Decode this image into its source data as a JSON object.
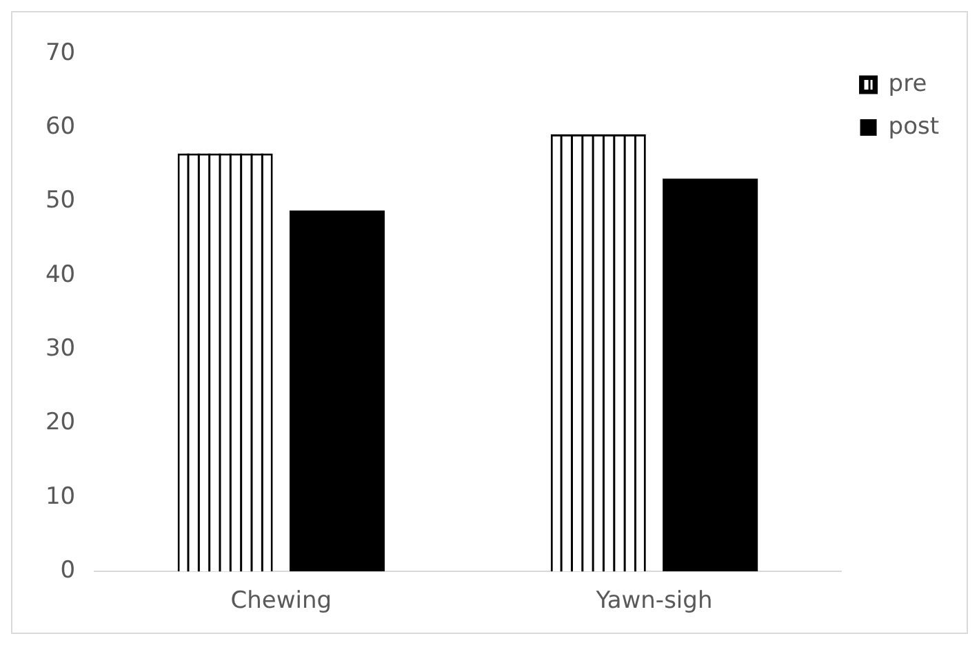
{
  "chart_data": {
    "type": "bar",
    "categories": [
      "Chewing",
      "Yawn-sigh"
    ],
    "series": [
      {
        "name": "pre",
        "color": "#ffffff",
        "values": [
          56.5,
          59.1
        ]
      },
      {
        "name": "post",
        "color": "#000000",
        "values": [
          48.8,
          53.1
        ]
      }
    ],
    "ylim": [
      0,
      70
    ],
    "yticks": [
      0,
      10,
      20,
      30,
      40,
      50,
      60,
      70
    ],
    "grid": false,
    "legend": "top right"
  }
}
